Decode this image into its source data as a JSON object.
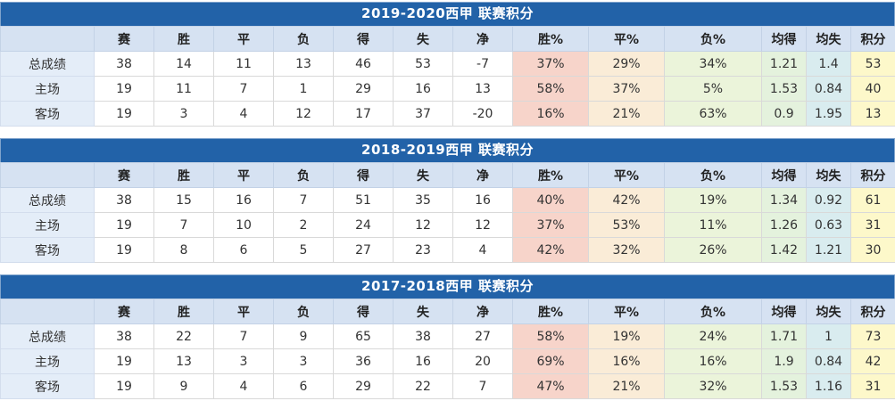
{
  "colors": {
    "title_bar_bg": "#2262a8",
    "title_bar_border": "#7fa3cc",
    "title_text": "#ffffff",
    "header_bg": "#d6e2f2",
    "label_bg": "#e4edf8",
    "win_pct_bg": "#f7d4ca",
    "draw_pct_bg": "#faecd7",
    "loss_pct_bg": "#ebf4da",
    "avg_for_bg": "#e4f2dd",
    "avg_against_bg": "#d9ecef",
    "points_bg": "#fdf8ca",
    "text": "#333333"
  },
  "columns": [
    "",
    "赛",
    "胜",
    "平",
    "负",
    "得",
    "失",
    "净",
    "胜%",
    "平%",
    "负%",
    "均得",
    "均失",
    "积分"
  ],
  "chart_data": [
    {
      "type": "table",
      "title": "2019-2020西甲 联赛积分",
      "columns": [
        "",
        "赛",
        "胜",
        "平",
        "负",
        "得",
        "失",
        "净",
        "胜%",
        "平%",
        "负%",
        "均得",
        "均失",
        "积分"
      ],
      "rows": [
        {
          "label": "总成绩",
          "values": [
            "38",
            "14",
            "11",
            "13",
            "46",
            "53",
            "-7",
            "37%",
            "29%",
            "34%",
            "1.21",
            "1.4",
            "53"
          ]
        },
        {
          "label": "主场",
          "values": [
            "19",
            "11",
            "7",
            "1",
            "29",
            "16",
            "13",
            "58%",
            "37%",
            "5%",
            "1.53",
            "0.84",
            "40"
          ]
        },
        {
          "label": "客场",
          "values": [
            "19",
            "3",
            "4",
            "12",
            "17",
            "37",
            "-20",
            "16%",
            "21%",
            "63%",
            "0.9",
            "1.95",
            "13"
          ]
        }
      ]
    },
    {
      "type": "table",
      "title": "2018-2019西甲 联赛积分",
      "columns": [
        "",
        "赛",
        "胜",
        "平",
        "负",
        "得",
        "失",
        "净",
        "胜%",
        "平%",
        "负%",
        "均得",
        "均失",
        "积分"
      ],
      "rows": [
        {
          "label": "总成绩",
          "values": [
            "38",
            "15",
            "16",
            "7",
            "51",
            "35",
            "16",
            "40%",
            "42%",
            "19%",
            "1.34",
            "0.92",
            "61"
          ]
        },
        {
          "label": "主场",
          "values": [
            "19",
            "7",
            "10",
            "2",
            "24",
            "12",
            "12",
            "37%",
            "53%",
            "11%",
            "1.26",
            "0.63",
            "31"
          ]
        },
        {
          "label": "客场",
          "values": [
            "19",
            "8",
            "6",
            "5",
            "27",
            "23",
            "4",
            "42%",
            "32%",
            "26%",
            "1.42",
            "1.21",
            "30"
          ]
        }
      ]
    },
    {
      "type": "table",
      "title": "2017-2018西甲 联赛积分",
      "columns": [
        "",
        "赛",
        "胜",
        "平",
        "负",
        "得",
        "失",
        "净",
        "胜%",
        "平%",
        "负%",
        "均得",
        "均失",
        "积分"
      ],
      "rows": [
        {
          "label": "总成绩",
          "values": [
            "38",
            "22",
            "7",
            "9",
            "65",
            "38",
            "27",
            "58%",
            "19%",
            "24%",
            "1.71",
            "1",
            "73"
          ]
        },
        {
          "label": "主场",
          "values": [
            "19",
            "13",
            "3",
            "3",
            "36",
            "16",
            "20",
            "69%",
            "16%",
            "16%",
            "1.9",
            "0.84",
            "42"
          ]
        },
        {
          "label": "客场",
          "values": [
            "19",
            "9",
            "4",
            "6",
            "29",
            "22",
            "7",
            "47%",
            "21%",
            "32%",
            "1.53",
            "1.16",
            "31"
          ]
        }
      ]
    }
  ]
}
